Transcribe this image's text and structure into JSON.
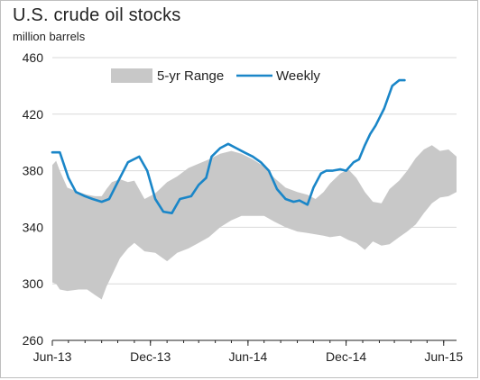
{
  "chart_data": {
    "type": "area",
    "title": "U.S. crude oil stocks",
    "ylabel": "million barrels",
    "xlabel": "",
    "ylim": [
      260,
      460
    ],
    "yticks": [
      260,
      300,
      340,
      380,
      420,
      460
    ],
    "ytick_labels": [
      "260",
      "300",
      "340",
      "380",
      "420",
      "460"
    ],
    "xlim": [
      "2013-06-01",
      "2015-06-25"
    ],
    "xticks": [
      "2013-06-01",
      "2013-12-01",
      "2014-06-01",
      "2014-12-01",
      "2015-06-01"
    ],
    "xtick_labels": [
      "Jun-13",
      "Dec-13",
      "Jun-14",
      "Dec-14",
      "Jun-15"
    ],
    "grid": "horizontal",
    "legend": "top",
    "series": [
      {
        "name": "5-yr Range",
        "kind": "band",
        "color": "#c8c8c8",
        "x": [
          "2013-06-01",
          "2013-06-08",
          "2013-06-15",
          "2013-06-29",
          "2013-07-20",
          "2013-08-05",
          "2013-08-20",
          "2013-09-01",
          "2013-09-10",
          "2013-09-20",
          "2013-10-05",
          "2013-10-20",
          "2013-11-01",
          "2013-11-20",
          "2013-12-10",
          "2014-01-01",
          "2014-01-20",
          "2014-02-10",
          "2014-03-01",
          "2014-03-20",
          "2014-04-10",
          "2014-05-01",
          "2014-05-20",
          "2014-06-10",
          "2014-07-01",
          "2014-07-20",
          "2014-08-10",
          "2014-09-01",
          "2014-09-20",
          "2014-10-05",
          "2014-10-20",
          "2014-11-01",
          "2014-11-20",
          "2014-12-05",
          "2014-12-20",
          "2015-01-05",
          "2015-01-20",
          "2015-02-05",
          "2015-02-20",
          "2015-03-10",
          "2015-03-25",
          "2015-04-10",
          "2015-04-25",
          "2015-05-10",
          "2015-05-25",
          "2015-06-10",
          "2015-06-25"
        ],
        "low": [
          301,
          300,
          296,
          295,
          296,
          296,
          292,
          289,
          298,
          306,
          318,
          325,
          329,
          323,
          322,
          316,
          322,
          325,
          329,
          333,
          340,
          345,
          348,
          348,
          348,
          344,
          340,
          337,
          336,
          335,
          334,
          333,
          334,
          331,
          329,
          324,
          330,
          327,
          328,
          333,
          337,
          342,
          350,
          357,
          361,
          362,
          365
        ],
        "high": [
          384,
          387,
          380,
          368,
          365,
          363,
          362,
          362,
          367,
          372,
          374,
          372,
          373,
          360,
          364,
          372,
          376,
          382,
          385,
          388,
          392,
          394,
          392,
          388,
          383,
          375,
          368,
          365,
          363,
          360,
          365,
          371,
          378,
          381,
          375,
          365,
          358,
          357,
          367,
          373,
          380,
          389,
          395,
          398,
          394,
          395,
          390
        ]
      },
      {
        "name": "Weekly",
        "kind": "line",
        "color": "#1a86c8",
        "x": [
          "2013-06-01",
          "2013-06-15",
          "2013-07-01",
          "2013-07-15",
          "2013-08-01",
          "2013-08-15",
          "2013-09-01",
          "2013-09-15",
          "2013-10-01",
          "2013-10-20",
          "2013-11-10",
          "2013-11-25",
          "2013-12-10",
          "2013-12-25",
          "2014-01-10",
          "2014-01-25",
          "2014-02-15",
          "2014-03-01",
          "2014-03-15",
          "2014-03-25",
          "2014-04-10",
          "2014-04-25",
          "2014-05-10",
          "2014-05-25",
          "2014-06-10",
          "2014-06-25",
          "2014-07-10",
          "2014-07-25",
          "2014-08-10",
          "2014-08-25",
          "2014-09-05",
          "2014-09-20",
          "2014-10-01",
          "2014-10-15",
          "2014-10-25",
          "2014-11-05",
          "2014-11-20",
          "2014-12-01",
          "2014-12-15",
          "2014-12-25",
          "2015-01-05",
          "2015-01-15",
          "2015-01-25",
          "2015-02-10",
          "2015-02-25",
          "2015-03-10",
          "2015-03-20"
        ],
        "values": [
          393,
          393,
          375,
          365,
          362,
          360,
          358,
          360,
          372,
          386,
          390,
          380,
          360,
          351,
          350,
          360,
          362,
          370,
          375,
          390,
          396,
          399,
          396,
          393,
          390,
          386,
          380,
          367,
          360,
          358,
          359,
          356,
          368,
          378,
          380,
          380,
          381,
          380,
          386,
          388,
          398,
          406,
          412,
          424,
          440,
          444,
          444
        ]
      }
    ]
  }
}
